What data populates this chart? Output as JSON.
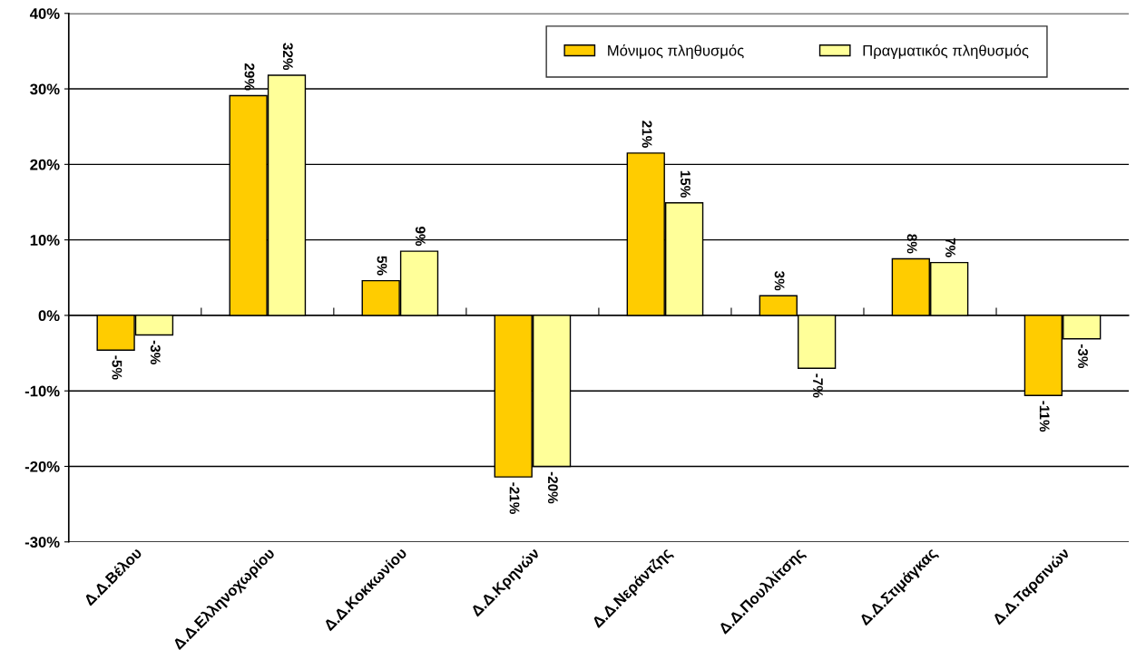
{
  "chart_data": {
    "type": "bar",
    "categories": [
      "Δ.Δ.Βέλου",
      "Δ.Δ.Ελληνοχωρίου",
      "Δ.Δ.Κοκκωνίου",
      "Δ.Δ.Κρηνών",
      "Δ.Δ.Νεράντζης",
      "Δ.Δ.Πουλλίτσης",
      "Δ.Δ.Στιμάγκας",
      "Δ.Δ.Ταρσινών"
    ],
    "series": [
      {
        "name": "Μόνιμος πληθυσμός",
        "color": "#ffcc00",
        "values": [
          -4.6,
          29.1,
          4.6,
          -21.4,
          21.5,
          2.6,
          7.5,
          -10.6
        ],
        "value_labels": [
          "-5%",
          "29%",
          "5%",
          "-21%",
          "21%",
          "3%",
          "8%",
          "-11%"
        ]
      },
      {
        "name": "Πραγματικός πληθυσμός",
        "color": "#ffff99",
        "values": [
          -2.6,
          31.8,
          8.5,
          -20.0,
          14.9,
          -7.0,
          7.0,
          -3.1
        ],
        "value_labels": [
          "-3%",
          "32%",
          "9%",
          "-20%",
          "15%",
          "-7%",
          "7%",
          "-3%"
        ]
      }
    ],
    "ylim": [
      -30,
      40
    ],
    "yticks": [
      {
        "value": -30,
        "label": "-30%"
      },
      {
        "value": -20,
        "label": "-20%"
      },
      {
        "value": -10,
        "label": "-10%"
      },
      {
        "value": 0,
        "label": "0%"
      },
      {
        "value": 10,
        "label": "10%"
      },
      {
        "value": 20,
        "label": "20%"
      },
      {
        "value": 30,
        "label": "30%"
      },
      {
        "value": 40,
        "label": "40%"
      }
    ],
    "grid": "y",
    "legend": "top right"
  }
}
